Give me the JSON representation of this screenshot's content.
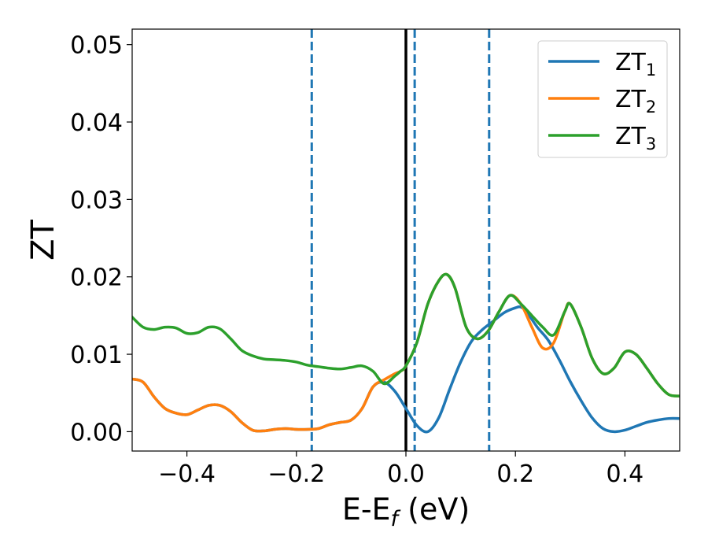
{
  "chart_data": {
    "type": "line",
    "xlabel_main": "E-E",
    "xlabel_sub": "f",
    "xlabel_unit": " (eV)",
    "ylabel": "ZT",
    "xlim": [
      -0.5,
      0.5
    ],
    "ylim": [
      -0.0025,
      0.052
    ],
    "xticks": [
      -0.4,
      -0.2,
      0.0,
      0.2,
      0.4
    ],
    "xtick_labels": [
      "−0.4",
      "−0.2",
      "0.0",
      "0.2",
      "0.4"
    ],
    "yticks": [
      0.0,
      0.01,
      0.02,
      0.03,
      0.04,
      0.05
    ],
    "ytick_labels": [
      "0.00",
      "0.01",
      "0.02",
      "0.03",
      "0.04",
      "0.05"
    ],
    "grid": false,
    "legend_position": "top-right",
    "vertical_lines": [
      {
        "x": -0.172,
        "style": "dashed",
        "color": "#1f77b4"
      },
      {
        "x": 0.0,
        "style": "solid",
        "color": "#000000"
      },
      {
        "x": 0.016,
        "style": "dashed",
        "color": "#1f77b4"
      },
      {
        "x": 0.152,
        "style": "dashed",
        "color": "#1f77b4"
      }
    ],
    "series": [
      {
        "name": "ZT",
        "sub": "1",
        "color": "#1f77b4",
        "x": [
          -0.5,
          -0.48,
          -0.46,
          -0.44,
          -0.42,
          -0.4,
          -0.38,
          -0.36,
          -0.34,
          -0.32,
          -0.3,
          -0.28,
          -0.26,
          -0.24,
          -0.22,
          -0.2,
          -0.18,
          -0.16,
          -0.14,
          -0.12,
          -0.1,
          -0.08,
          -0.06,
          -0.04,
          -0.02,
          0.0,
          0.02,
          0.04,
          0.06,
          0.08,
          0.1,
          0.12,
          0.14,
          0.16,
          0.18,
          0.2,
          0.21,
          0.22,
          0.24,
          0.26,
          0.28,
          0.3,
          0.32,
          0.34,
          0.36,
          0.38,
          0.4,
          0.42,
          0.44,
          0.46,
          0.48,
          0.5
        ],
        "y": [
          0.0068,
          0.0064,
          0.0045,
          0.003,
          0.0024,
          0.0022,
          0.0028,
          0.0034,
          0.0034,
          0.0026,
          0.0012,
          0.0002,
          0.0001,
          0.0003,
          0.0004,
          0.0003,
          0.0003,
          0.0004,
          0.0009,
          0.0012,
          0.0015,
          0.003,
          0.0058,
          0.0064,
          0.0052,
          0.003,
          0.0008,
          0.0,
          0.0018,
          0.0055,
          0.009,
          0.0117,
          0.0132,
          0.0143,
          0.0154,
          0.016,
          0.0161,
          0.0155,
          0.0135,
          0.0118,
          0.0093,
          0.0065,
          0.004,
          0.0018,
          0.0004,
          0.0,
          0.0002,
          0.0007,
          0.0012,
          0.0015,
          0.0017,
          0.0017
        ]
      },
      {
        "name": "ZT",
        "sub": "2",
        "color": "#ff7f0e",
        "x": [
          -0.5,
          -0.48,
          -0.46,
          -0.44,
          -0.42,
          -0.4,
          -0.38,
          -0.36,
          -0.34,
          -0.32,
          -0.3,
          -0.28,
          -0.26,
          -0.24,
          -0.22,
          -0.2,
          -0.18,
          -0.16,
          -0.14,
          -0.12,
          -0.1,
          -0.08,
          -0.06,
          -0.04,
          -0.02,
          -0.01,
          0.0,
          0.02,
          0.04,
          0.06,
          0.075,
          0.09,
          0.11,
          0.13,
          0.15,
          0.17,
          0.19,
          0.21,
          0.23,
          0.25,
          0.27,
          0.29,
          0.3,
          0.32,
          0.34,
          0.36,
          0.38,
          0.4,
          0.42,
          0.44,
          0.46,
          0.48,
          0.5
        ],
        "y": [
          0.0068,
          0.0064,
          0.0045,
          0.003,
          0.0024,
          0.0022,
          0.0028,
          0.0034,
          0.0034,
          0.0026,
          0.0012,
          0.0002,
          0.0001,
          0.0003,
          0.0004,
          0.0003,
          0.0003,
          0.0004,
          0.0009,
          0.0012,
          0.0015,
          0.003,
          0.0058,
          0.0067,
          0.0075,
          0.0078,
          0.0085,
          0.0115,
          0.0165,
          0.0195,
          0.0203,
          0.0185,
          0.0135,
          0.012,
          0.013,
          0.0155,
          0.0176,
          0.0165,
          0.0135,
          0.0108,
          0.0115,
          0.0155,
          0.0165,
          0.0135,
          0.0095,
          0.0075,
          0.0082,
          0.0103,
          0.01,
          0.0082,
          0.0062,
          0.0048,
          0.0046
        ]
      },
      {
        "name": "ZT",
        "sub": "3",
        "color": "#2ca02c",
        "x": [
          -0.5,
          -0.48,
          -0.46,
          -0.44,
          -0.42,
          -0.4,
          -0.38,
          -0.36,
          -0.34,
          -0.32,
          -0.3,
          -0.28,
          -0.26,
          -0.24,
          -0.22,
          -0.2,
          -0.18,
          -0.16,
          -0.14,
          -0.12,
          -0.1,
          -0.08,
          -0.06,
          -0.04,
          -0.02,
          -0.01,
          0.0,
          0.02,
          0.04,
          0.06,
          0.075,
          0.09,
          0.11,
          0.13,
          0.15,
          0.17,
          0.19,
          0.21,
          0.23,
          0.25,
          0.27,
          0.29,
          0.3,
          0.32,
          0.34,
          0.36,
          0.38,
          0.4,
          0.42,
          0.44,
          0.46,
          0.48,
          0.5
        ],
        "y": [
          0.0148,
          0.0135,
          0.0132,
          0.0135,
          0.0134,
          0.0127,
          0.0128,
          0.0135,
          0.0133,
          0.012,
          0.0105,
          0.0098,
          0.0094,
          0.0093,
          0.0092,
          0.009,
          0.0086,
          0.0084,
          0.0082,
          0.0081,
          0.0083,
          0.0085,
          0.0078,
          0.0062,
          0.0072,
          0.0078,
          0.0085,
          0.0115,
          0.0165,
          0.0195,
          0.0203,
          0.0185,
          0.0135,
          0.012,
          0.013,
          0.0155,
          0.0176,
          0.0165,
          0.015,
          0.0135,
          0.0125,
          0.0155,
          0.0165,
          0.0135,
          0.0095,
          0.0075,
          0.0082,
          0.0103,
          0.01,
          0.0082,
          0.0062,
          0.0048,
          0.0046
        ]
      }
    ]
  }
}
